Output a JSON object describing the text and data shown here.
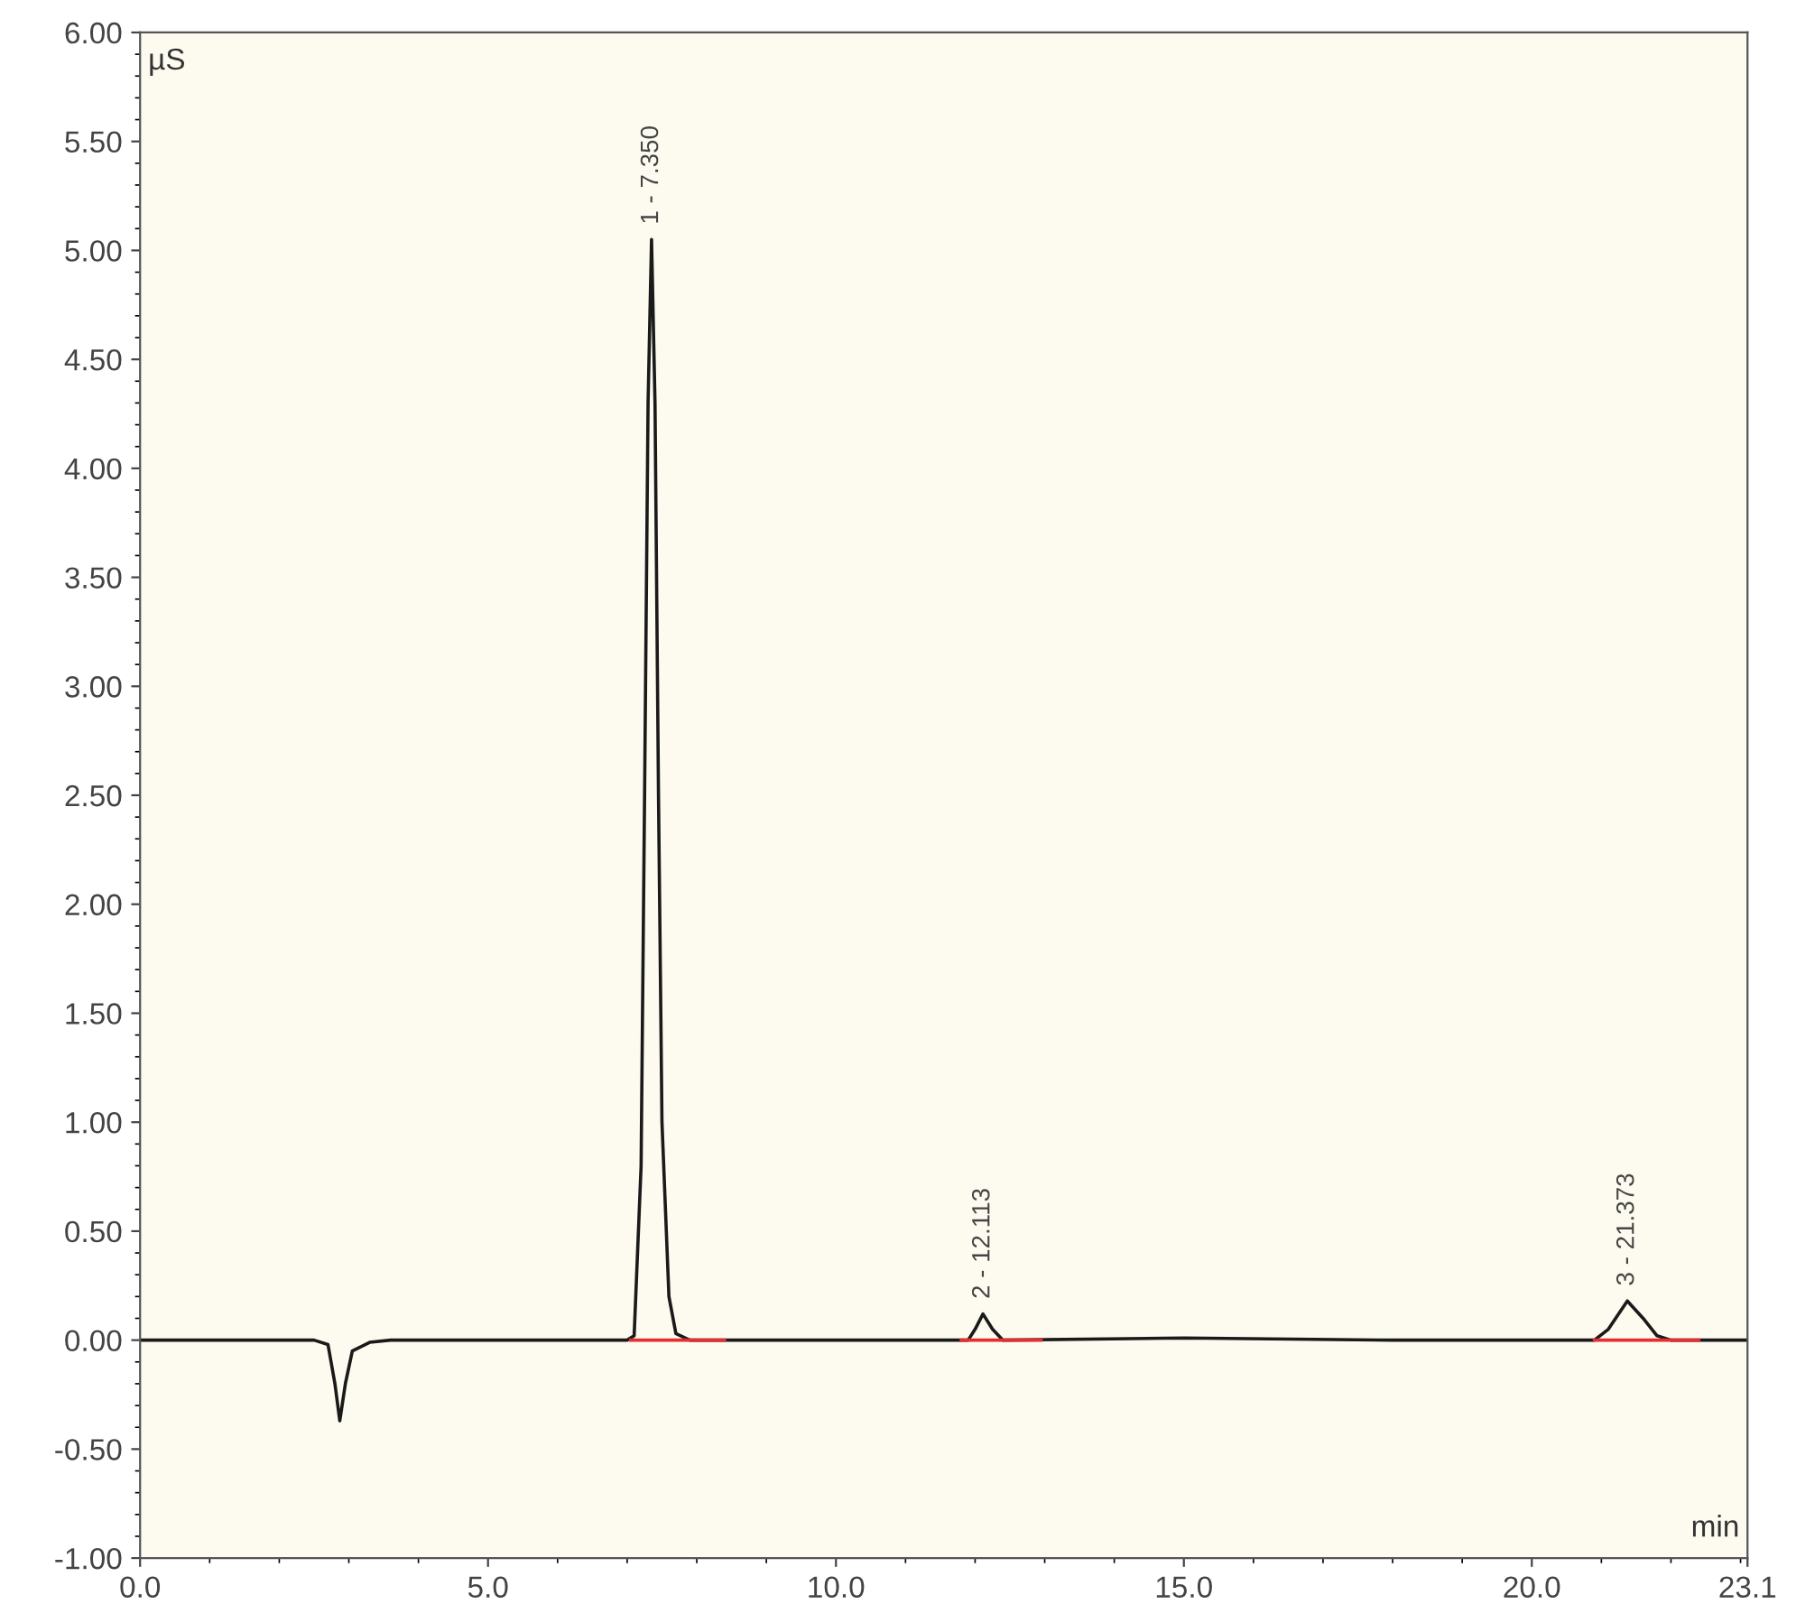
{
  "chart_data": {
    "type": "line",
    "xlabel": "min",
    "ylabel": "µS",
    "xlim": [
      0,
      23.1
    ],
    "ylim": [
      -1.0,
      6.0
    ],
    "xticks": [
      {
        "value": 0,
        "label": "0.0"
      },
      {
        "value": 5,
        "label": "5.0"
      },
      {
        "value": 10,
        "label": "10.0"
      },
      {
        "value": 15,
        "label": "15.0"
      },
      {
        "value": 20,
        "label": "20.0"
      },
      23.1
    ],
    "yticks": [
      {
        "value": -1,
        "label": "-1.00"
      },
      {
        "value": -0.5,
        "label": "-0.50"
      },
      {
        "value": 0,
        "label": "0.00"
      },
      {
        "value": 0.5,
        "label": "0.50"
      },
      {
        "value": 1,
        "label": "1.00"
      },
      {
        "value": 1.5,
        "label": "1.50"
      },
      {
        "value": 2,
        "label": "2.00"
      },
      {
        "value": 2.5,
        "label": "2.50"
      },
      {
        "value": 3,
        "label": "3.00"
      },
      {
        "value": 3.5,
        "label": "3.50"
      },
      {
        "value": 4,
        "label": "4.00"
      },
      {
        "value": 4.5,
        "label": "4.50"
      },
      {
        "value": 5,
        "label": "5.00"
      },
      {
        "value": 5.5,
        "label": "5.50"
      },
      {
        "value": 6,
        "label": "6.00"
      }
    ],
    "grid": false,
    "legend": false,
    "marker": "none",
    "line_style": "solid",
    "series": [
      {
        "color": "#1a1a1a",
        "x": [
          0,
          2.5,
          2.7,
          2.8,
          2.87,
          2.95,
          3.05,
          3.3,
          3.6,
          7.0,
          7.1,
          7.2,
          7.25,
          7.3,
          7.35,
          7.4,
          7.45,
          7.5,
          7.6,
          7.7,
          7.9,
          11.9,
          12.0,
          12.113,
          12.25,
          12.4,
          15.0,
          18.0,
          20.9,
          21.1,
          21.373,
          21.6,
          21.8,
          22.0,
          23.1
        ],
        "values": [
          0,
          0,
          -0.02,
          -0.2,
          -0.37,
          -0.2,
          -0.05,
          -0.01,
          0,
          0,
          0.02,
          0.8,
          2.5,
          4.3,
          5.05,
          4.3,
          2.5,
          1.0,
          0.2,
          0.03,
          0,
          0,
          0.05,
          0.12,
          0.05,
          0,
          0.01,
          0,
          0,
          0.05,
          0.18,
          0.1,
          0.02,
          0,
          0
        ]
      },
      {
        "color": "#e03030",
        "x": [
          7.05,
          8.4
        ],
        "values": [
          0,
          0
        ]
      },
      {
        "color": "#e03030",
        "x": [
          11.8,
          12.95
        ],
        "values": [
          0,
          0
        ]
      },
      {
        "color": "#e03030",
        "x": [
          20.9,
          22.4
        ],
        "values": [
          0,
          0
        ]
      }
    ],
    "annotations": [
      {
        "text": "1 - 7.350",
        "x": 7.35,
        "y": 5.05
      },
      {
        "text": "2 - 12.113",
        "x": 12.113,
        "y": 0.12
      },
      {
        "text": "3 - 21.373",
        "x": 21.373,
        "y": 0.18
      }
    ]
  }
}
